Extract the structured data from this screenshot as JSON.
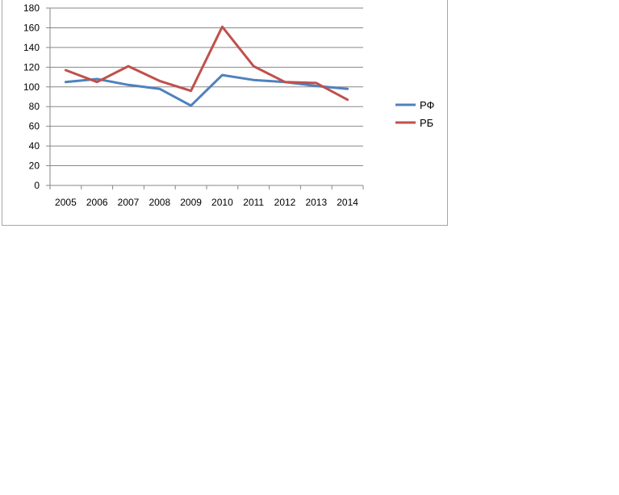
{
  "chart_data": {
    "type": "line",
    "categories": [
      "2005",
      "2006",
      "2007",
      "2008",
      "2009",
      "2010",
      "2011",
      "2012",
      "2013",
      "2014"
    ],
    "series": [
      {
        "name": "РФ",
        "color": "#4f81bd",
        "values": [
          105,
          108,
          102,
          98,
          81,
          112,
          107,
          105,
          101,
          98
        ]
      },
      {
        "name": "РБ",
        "color": "#c0504d",
        "values": [
          117,
          105,
          121,
          106,
          96,
          161,
          121,
          105,
          104,
          87
        ]
      }
    ],
    "title": "",
    "xlabel": "",
    "ylabel": "",
    "ylim": [
      0,
      180
    ],
    "yticks": [
      "0",
      "20",
      "40",
      "60",
      "80",
      "100",
      "120",
      "140",
      "160",
      "180"
    ],
    "grid": true,
    "legend": "right"
  }
}
